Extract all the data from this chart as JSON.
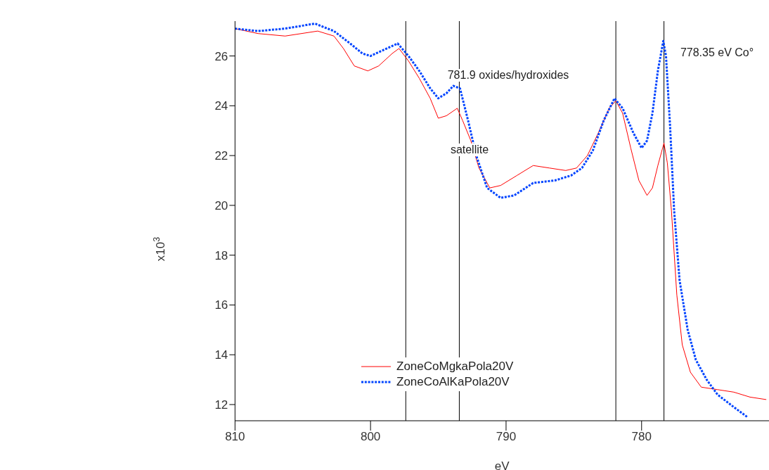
{
  "chart_data": {
    "type": "line",
    "xlabel": "eV",
    "ylabel": "x10$^{3}$",
    "xlim": [
      810,
      770.6
    ],
    "xticks": [
      810,
      800,
      790,
      780
    ],
    "ylim": [
      11.35,
      27.4
    ],
    "yticks": [
      12,
      14,
      16,
      18,
      20,
      22,
      24,
      26
    ],
    "grid": false,
    "legend": "bottom",
    "marker": "none",
    "series": [
      {
        "name": "ZoneCoMgkaPola20V",
        "color": "#ff0000",
        "line_style": "solid",
        "x": [
          810,
          808.3,
          806.3,
          803.9,
          802.7,
          802.0,
          801.2,
          800.2,
          799.4,
          798.4,
          797.9,
          797.2,
          796.4,
          795.6,
          795.0,
          794.4,
          793.6,
          793.2,
          792.6,
          792.0,
          791.2,
          790.4,
          789.2,
          788.0,
          786.8,
          785.6,
          784.8,
          784.0,
          783.2,
          782.4,
          781.9,
          781.4,
          780.8,
          780.2,
          779.6,
          779.2,
          778.8,
          778.35,
          778.1,
          777.8,
          777.4,
          777.0,
          776.4,
          775.6,
          774.4,
          773.2,
          772.0,
          770.8
        ],
        "values": [
          27.1,
          26.9,
          26.8,
          27.0,
          26.8,
          26.3,
          25.6,
          25.4,
          25.6,
          26.1,
          26.3,
          25.8,
          25.1,
          24.3,
          23.5,
          23.6,
          23.9,
          23.4,
          22.6,
          21.5,
          20.7,
          20.8,
          21.2,
          21.6,
          21.5,
          21.4,
          21.5,
          22.0,
          22.9,
          23.9,
          24.2,
          23.7,
          22.3,
          21.0,
          20.4,
          20.7,
          21.6,
          22.5,
          21.7,
          19.8,
          16.4,
          14.4,
          13.3,
          12.7,
          12.6,
          12.5,
          12.3,
          12.2
        ]
      },
      {
        "name": "ZoneCoAlKaPola20V",
        "color": "#0044ff",
        "line_style": "dotted",
        "x": [
          810,
          808.3,
          806.3,
          804.1,
          802.7,
          801.5,
          800.6,
          800.0,
          799.2,
          798.0,
          797.2,
          796.4,
          795.6,
          795.0,
          794.4,
          793.9,
          793.4,
          792.8,
          792.2,
          791.4,
          790.4,
          789.4,
          788.0,
          786.4,
          785.2,
          784.4,
          783.6,
          782.8,
          782.0,
          781.4,
          780.6,
          780.0,
          779.6,
          779.2,
          778.8,
          778.4,
          778.2,
          777.9,
          777.6,
          777.2,
          776.6,
          776.0,
          775.2,
          774.4,
          773.2,
          772.2
        ],
        "values": [
          27.1,
          27.0,
          27.1,
          27.3,
          27.0,
          26.5,
          26.1,
          26.0,
          26.2,
          26.5,
          26.0,
          25.4,
          24.7,
          24.3,
          24.5,
          24.8,
          24.7,
          23.4,
          22.0,
          20.7,
          20.3,
          20.4,
          20.9,
          21.0,
          21.2,
          21.5,
          22.2,
          23.4,
          24.3,
          23.9,
          22.9,
          22.3,
          22.6,
          23.7,
          25.4,
          26.6,
          26.0,
          23.2,
          19.8,
          17.0,
          15.0,
          13.8,
          13.0,
          12.4,
          11.9,
          11.5
        ]
      }
    ],
    "ref_lines": [
      {
        "axis": "x",
        "value": 797.4,
        "color": "#000000"
      },
      {
        "axis": "x",
        "value": 793.45,
        "color": "#000000"
      },
      {
        "axis": "x",
        "value": 781.9,
        "color": "#000000"
      },
      {
        "axis": "x",
        "value": 778.35,
        "color": "#000000"
      }
    ],
    "annotations": [
      "781.9 oxides/hydroxides",
      "778.35 eV Co°",
      "satellite"
    ]
  }
}
